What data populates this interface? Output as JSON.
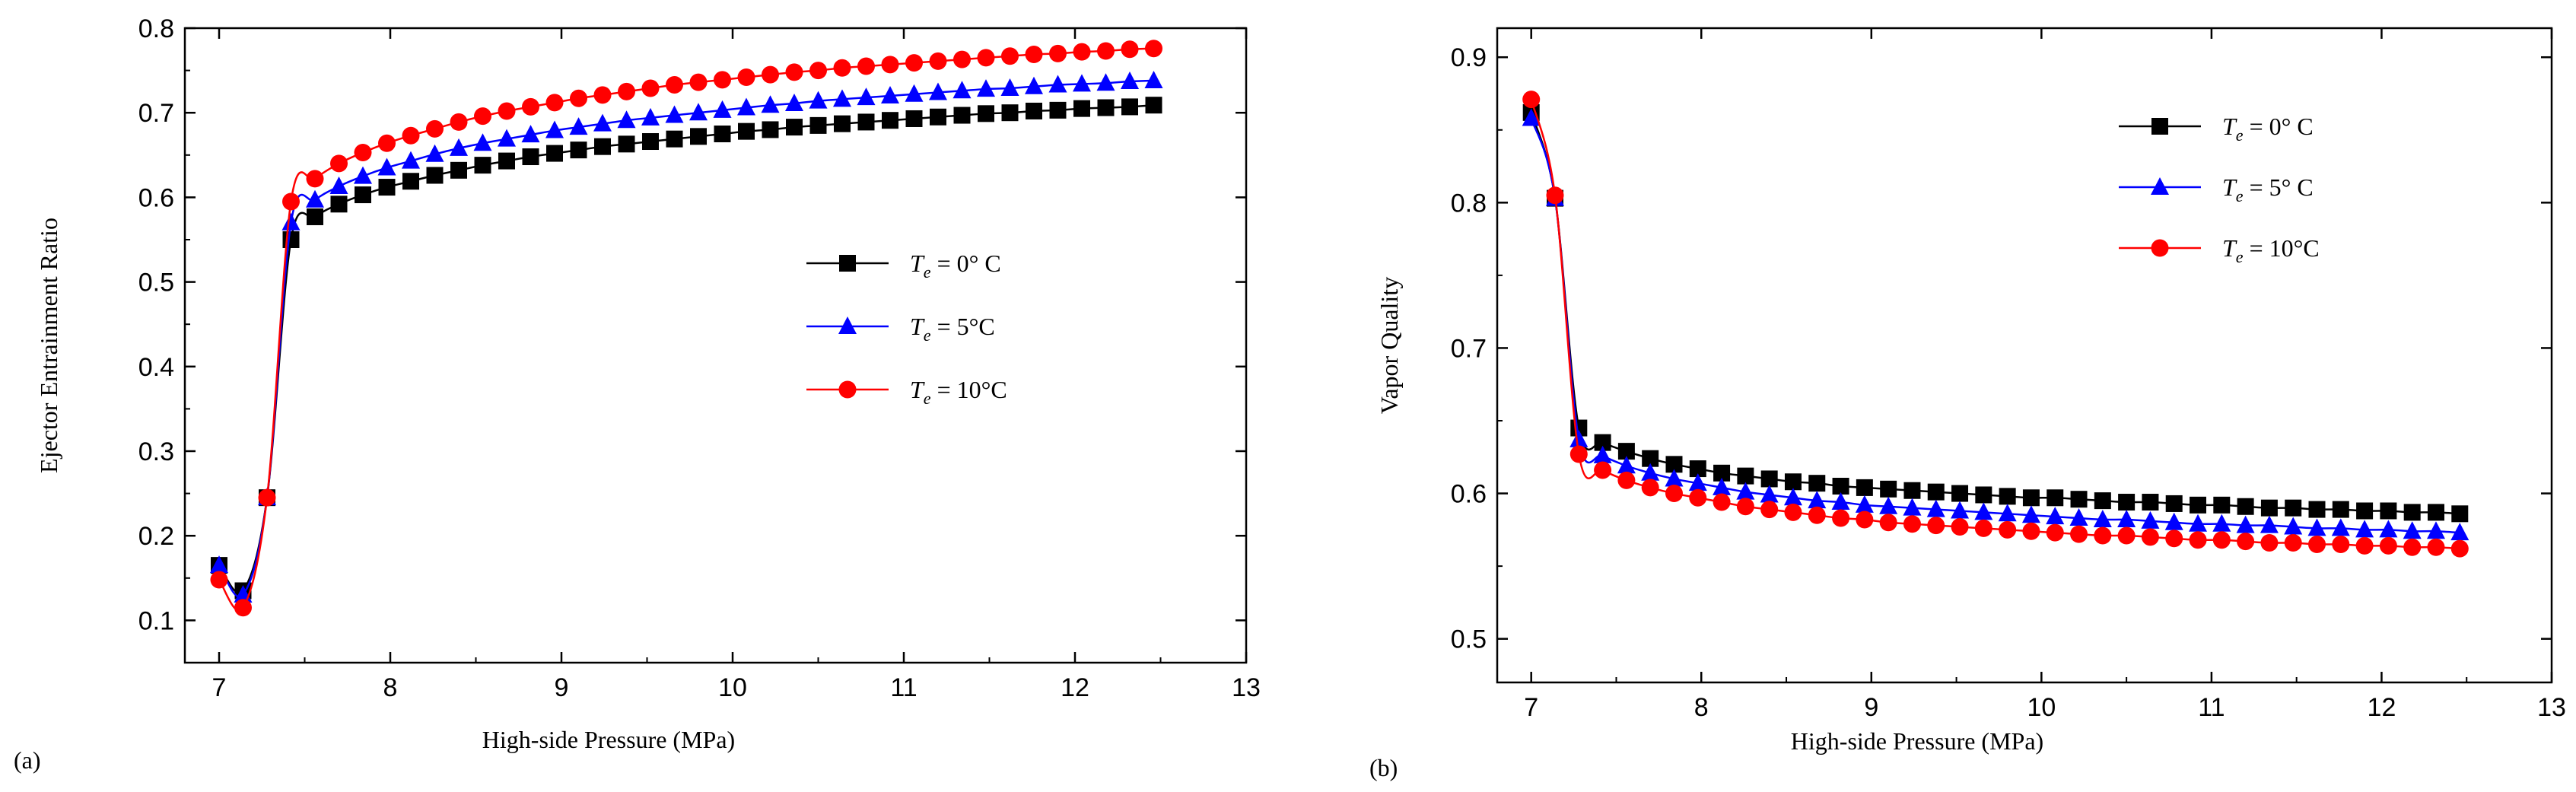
{
  "chart_data": [
    {
      "type": "line",
      "panel_label": "(a)",
      "xlabel": "High-side Pressure (MPa)",
      "ylabel": "Ejector Entrainment Ratio",
      "xlim": [
        6.8,
        13
      ],
      "ylim": [
        0.05,
        0.8
      ],
      "xticks": [
        "7",
        "8",
        "9",
        "10",
        "11",
        "12",
        "13"
      ],
      "yticks": [
        "0.1",
        "0.2",
        "0.3",
        "0.4",
        "0.5",
        "0.6",
        "0.7",
        "0.8"
      ],
      "grid": false,
      "legend_position": "middle-right",
      "legend_subscript": "e",
      "series": [
        {
          "name": "T",
          "label_rest": " = 0° C",
          "color": "#000000",
          "marker": "square",
          "x_start": 7.0,
          "x_step": 0.14,
          "count": 40,
          "values": [
            0.165,
            0.135,
            0.245,
            0.55,
            0.577,
            0.592,
            0.603,
            0.612,
            0.619,
            0.626,
            0.632,
            0.638,
            0.643,
            0.648,
            0.652,
            0.656,
            0.66,
            0.663,
            0.666,
            0.669,
            0.672,
            0.675,
            0.678,
            0.68,
            0.683,
            0.685,
            0.687,
            0.689,
            0.691,
            0.693,
            0.695,
            0.697,
            0.699,
            0.7,
            0.702,
            0.703,
            0.705,
            0.706,
            0.707,
            0.709
          ]
        },
        {
          "name": "T",
          "label_rest": " = 5°C",
          "color": "#0000ff",
          "marker": "triangle",
          "x_start": 7.0,
          "x_step": 0.14,
          "count": 40,
          "values": [
            0.165,
            0.13,
            0.245,
            0.57,
            0.597,
            0.613,
            0.625,
            0.635,
            0.643,
            0.651,
            0.658,
            0.664,
            0.669,
            0.674,
            0.679,
            0.683,
            0.687,
            0.691,
            0.694,
            0.697,
            0.7,
            0.703,
            0.706,
            0.709,
            0.711,
            0.714,
            0.716,
            0.718,
            0.72,
            0.722,
            0.724,
            0.726,
            0.728,
            0.729,
            0.731,
            0.733,
            0.734,
            0.735,
            0.737,
            0.738
          ]
        },
        {
          "name": "T",
          "label_rest": " = 10°C",
          "color": "#ff0000",
          "marker": "circle",
          "x_start": 7.0,
          "x_step": 0.14,
          "count": 40,
          "values": [
            0.148,
            0.115,
            0.245,
            0.595,
            0.622,
            0.64,
            0.653,
            0.664,
            0.673,
            0.681,
            0.689,
            0.696,
            0.702,
            0.707,
            0.712,
            0.717,
            0.721,
            0.725,
            0.729,
            0.733,
            0.736,
            0.739,
            0.742,
            0.745,
            0.748,
            0.75,
            0.753,
            0.755,
            0.757,
            0.759,
            0.761,
            0.763,
            0.765,
            0.767,
            0.769,
            0.77,
            0.772,
            0.773,
            0.775,
            0.776
          ]
        }
      ]
    },
    {
      "type": "line",
      "panel_label": "(b)",
      "xlabel": "High-side Pressure (MPa)",
      "ylabel": "Vapor Quality",
      "xlim": [
        6.8,
        13
      ],
      "ylim": [
        0.47,
        0.92
      ],
      "xticks": [
        "7",
        "8",
        "9",
        "10",
        "11",
        "12",
        "13"
      ],
      "yticks": [
        "0.5",
        "0.6",
        "0.7",
        "0.8",
        "0.9"
      ],
      "grid": false,
      "legend_position": "top-right",
      "legend_subscript": "e",
      "series": [
        {
          "name": "T",
          "label_rest": " = 0° C",
          "color": "#000000",
          "marker": "square",
          "x_start": 7.0,
          "x_step": 0.14,
          "count": 40,
          "values": [
            0.862,
            0.803,
            0.645,
            0.635,
            0.629,
            0.624,
            0.62,
            0.617,
            0.614,
            0.612,
            0.61,
            0.608,
            0.607,
            0.605,
            0.604,
            0.603,
            0.602,
            0.601,
            0.6,
            0.599,
            0.598,
            0.597,
            0.597,
            0.596,
            0.595,
            0.594,
            0.594,
            0.593,
            0.592,
            0.592,
            0.591,
            0.59,
            0.59,
            0.589,
            0.589,
            0.588,
            0.588,
            0.587,
            0.587,
            0.586
          ]
        },
        {
          "name": "T",
          "label_rest": " = 5° C",
          "color": "#0000ff",
          "marker": "triangle",
          "x_start": 7.0,
          "x_step": 0.14,
          "count": 40,
          "values": [
            0.858,
            0.803,
            0.637,
            0.626,
            0.619,
            0.614,
            0.61,
            0.607,
            0.604,
            0.601,
            0.599,
            0.597,
            0.595,
            0.594,
            0.592,
            0.591,
            0.59,
            0.589,
            0.588,
            0.587,
            0.586,
            0.585,
            0.584,
            0.583,
            0.582,
            0.582,
            0.581,
            0.58,
            0.579,
            0.579,
            0.578,
            0.578,
            0.577,
            0.576,
            0.576,
            0.575,
            0.575,
            0.574,
            0.574,
            0.573
          ]
        },
        {
          "name": "T",
          "label_rest": " = 10°C",
          "color": "#ff0000",
          "marker": "circle",
          "x_start": 7.0,
          "x_step": 0.14,
          "count": 40,
          "values": [
            0.871,
            0.805,
            0.627,
            0.616,
            0.609,
            0.604,
            0.6,
            0.597,
            0.594,
            0.591,
            0.589,
            0.587,
            0.585,
            0.583,
            0.582,
            0.58,
            0.579,
            0.578,
            0.577,
            0.576,
            0.575,
            0.574,
            0.573,
            0.572,
            0.571,
            0.571,
            0.57,
            0.569,
            0.568,
            0.568,
            0.567,
            0.566,
            0.566,
            0.565,
            0.565,
            0.564,
            0.564,
            0.563,
            0.563,
            0.562
          ]
        }
      ]
    }
  ]
}
